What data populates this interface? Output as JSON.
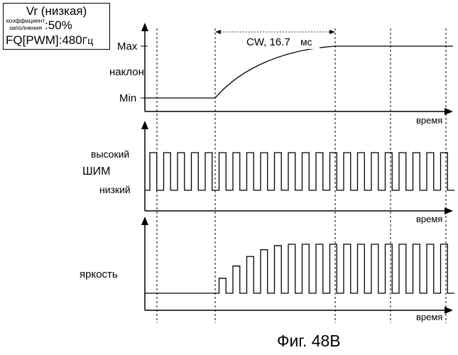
{
  "info_box": {
    "line1": "Vr (низкая)",
    "duty_label_1": "коэффициент",
    "duty_label_2": "заполнения",
    "duty_value": ":50%",
    "line3_prefix": "FQ[PWM]:480",
    "line3_unit": "Гц"
  },
  "top_panel": {
    "max_label": "Max",
    "min_label": "Min",
    "ylabel": "наклон",
    "xlabel": "время",
    "cw_label": "CW, 16.7",
    "cw_unit": "мс"
  },
  "pwm_panel": {
    "high_label": "высокий",
    "low_label": "низкий",
    "ylabel": "ШИМ",
    "xlabel": "время"
  },
  "brightness_panel": {
    "ylabel": "яркость",
    "xlabel": "время"
  },
  "caption": "Фиг. 48B",
  "pwm": {
    "duty_cycle": 0.5,
    "ramp_start_pulse": 5,
    "ramp_end_pulse": 10,
    "pulse_count": 22
  }
}
